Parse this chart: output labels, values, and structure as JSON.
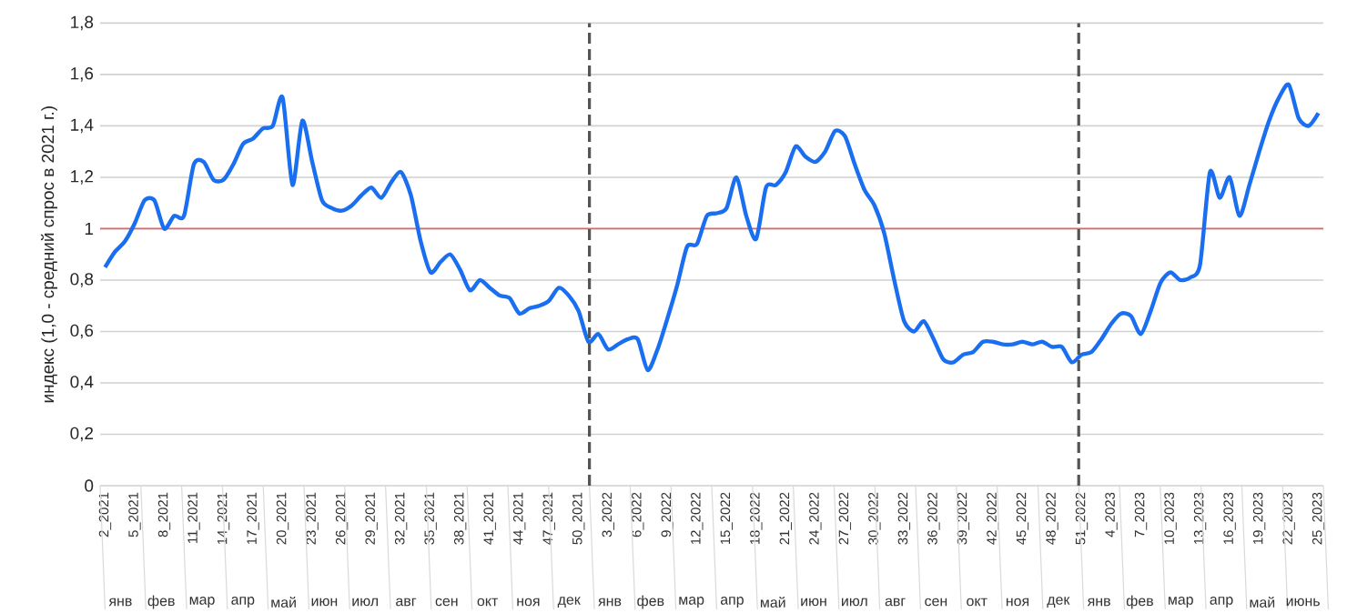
{
  "chart_data": {
    "type": "line",
    "ylabel": "индекс (1,0 - средний спрос в 2021 г.)",
    "categories": [
      "2_2021",
      null,
      null,
      "5_2021",
      null,
      null,
      "8_2021",
      null,
      null,
      "11_2021",
      null,
      null,
      "14_2021",
      null,
      null,
      "17_2021",
      null,
      null,
      "20_2021",
      null,
      null,
      "23_2021",
      null,
      null,
      "26_2021",
      null,
      null,
      "29_2021",
      null,
      null,
      "32_2021",
      null,
      null,
      "35_2021",
      null,
      null,
      "38_2021",
      null,
      null,
      "41_2021",
      null,
      null,
      "44_2021",
      null,
      null,
      "47_2021",
      null,
      null,
      "50_2021",
      null,
      null,
      "3_2022",
      null,
      null,
      "6_2022",
      null,
      null,
      "9_2022",
      null,
      null,
      "12_2022",
      null,
      null,
      "15_2022",
      null,
      null,
      "18_2022",
      null,
      null,
      "21_2022",
      null,
      null,
      "24_2022",
      null,
      null,
      "27_2022",
      null,
      null,
      "30_2022",
      null,
      null,
      "33_2022",
      null,
      null,
      "36_2022",
      null,
      null,
      "39_2022",
      null,
      null,
      "42_2022",
      null,
      null,
      "45_2022",
      null,
      null,
      "48_2022",
      null,
      null,
      "51_2022",
      null,
      null,
      "4_2023",
      null,
      null,
      "7_2023",
      null,
      null,
      "10_2023",
      null,
      null,
      "13_2023",
      null,
      null,
      "16_2023",
      null,
      null,
      "19_2023",
      null,
      null,
      "22_2023",
      null,
      null,
      "25_2023"
    ],
    "series": [
      {
        "color": "#1a6ff0",
        "values": [
          0.85,
          0.91,
          0.95,
          1.02,
          1.11,
          1.11,
          1.0,
          1.05,
          1.05,
          1.25,
          1.26,
          1.19,
          1.19,
          1.25,
          1.33,
          1.35,
          1.39,
          1.4,
          1.51,
          1.17,
          1.42,
          1.26,
          1.11,
          1.08,
          1.07,
          1.09,
          1.13,
          1.16,
          1.12,
          1.18,
          1.22,
          1.13,
          0.95,
          0.83,
          0.87,
          0.9,
          0.84,
          0.76,
          0.8,
          0.77,
          0.74,
          0.73,
          0.67,
          0.69,
          0.7,
          0.72,
          0.77,
          0.74,
          0.68,
          0.56,
          0.59,
          0.53,
          0.55,
          0.57,
          0.57,
          0.45,
          0.53,
          0.65,
          0.78,
          0.93,
          0.94,
          1.05,
          1.06,
          1.08,
          1.2,
          1.05,
          0.96,
          1.16,
          1.17,
          1.22,
          1.32,
          1.28,
          1.26,
          1.3,
          1.38,
          1.36,
          1.25,
          1.15,
          1.09,
          0.98,
          0.8,
          0.64,
          0.6,
          0.64,
          0.57,
          0.49,
          0.48,
          0.51,
          0.52,
          0.56,
          0.56,
          0.55,
          0.55,
          0.56,
          0.55,
          0.56,
          0.54,
          0.54,
          0.48,
          0.51,
          0.52,
          0.57,
          0.63,
          0.67,
          0.66,
          0.59,
          0.68,
          0.79,
          0.83,
          0.8,
          0.81,
          0.86,
          1.22,
          1.12,
          1.2,
          1.05,
          1.17,
          1.3,
          1.42,
          1.51,
          1.56,
          1.43,
          1.4,
          1.45
        ]
      }
    ],
    "ylim": [
      0,
      1.8
    ],
    "yticks": [
      0,
      {
        "value": 0.2,
        "label": "0,2"
      },
      {
        "value": 0.4,
        "label": "0,4"
      },
      {
        "value": 0.6,
        "label": "0,6"
      },
      {
        "value": 0.8,
        "label": "0,8"
      },
      1,
      {
        "value": 1.2,
        "label": "1,2"
      },
      {
        "value": 1.4,
        "label": "1,4"
      },
      {
        "value": 1.6,
        "label": "1,6"
      },
      {
        "value": 1.8,
        "label": "1,8"
      }
    ],
    "grid": "y",
    "ref_lines": [
      {
        "axis": "y",
        "value": 1,
        "color": "#e06666",
        "line_style": "solid"
      }
    ],
    "annotations": [
      "янв",
      "фев",
      "мар",
      "апр",
      "май",
      "июн",
      "июл",
      "авг",
      "сен",
      "окт",
      "ноя",
      "дек",
      "янв",
      "фев",
      "мар",
      "апр",
      "май",
      "июн",
      "июл",
      "авг",
      "сен",
      "окт",
      "ноя",
      "дек",
      "янв",
      "фев",
      "мар",
      "апр",
      "май",
      "июнь"
    ]
  }
}
